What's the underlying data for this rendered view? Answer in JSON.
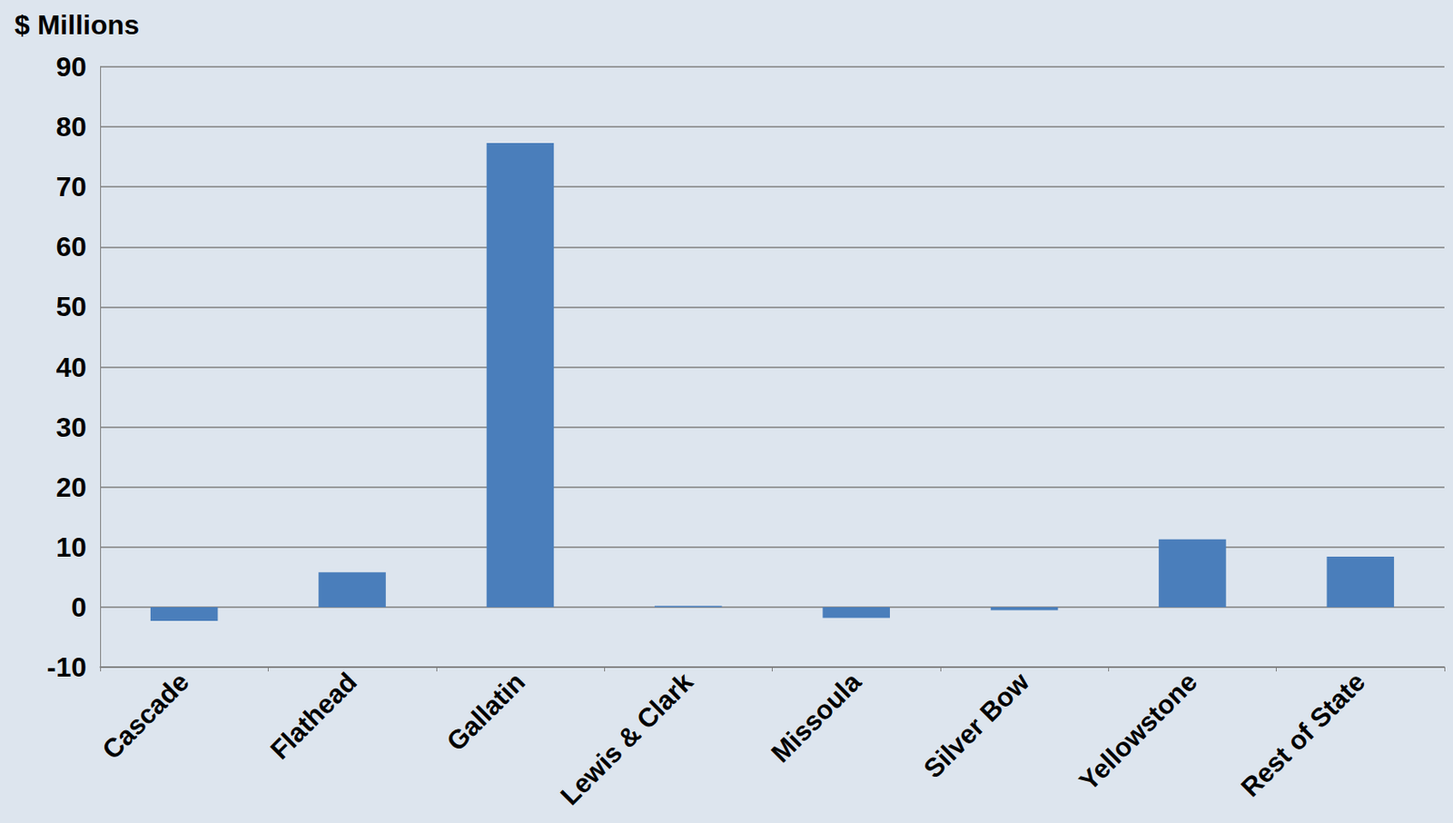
{
  "chart_data": {
    "type": "bar",
    "ylabel": "$ Millions",
    "categories": [
      "Cascade",
      "Flathead",
      "Gallatin",
      "Lewis & Clark",
      "Missoula",
      "Silver Bow",
      "Yellowstone",
      "Rest of State"
    ],
    "values": [
      -2.3,
      5.8,
      77.3,
      0.2,
      -1.8,
      -0.5,
      11.3,
      8.4
    ],
    "color": "#4a7ebb",
    "ylim": [
      -10,
      90
    ],
    "yticks": [
      -10,
      0,
      10,
      20,
      30,
      40,
      50,
      60,
      70,
      80,
      90
    ],
    "grid": true
  }
}
